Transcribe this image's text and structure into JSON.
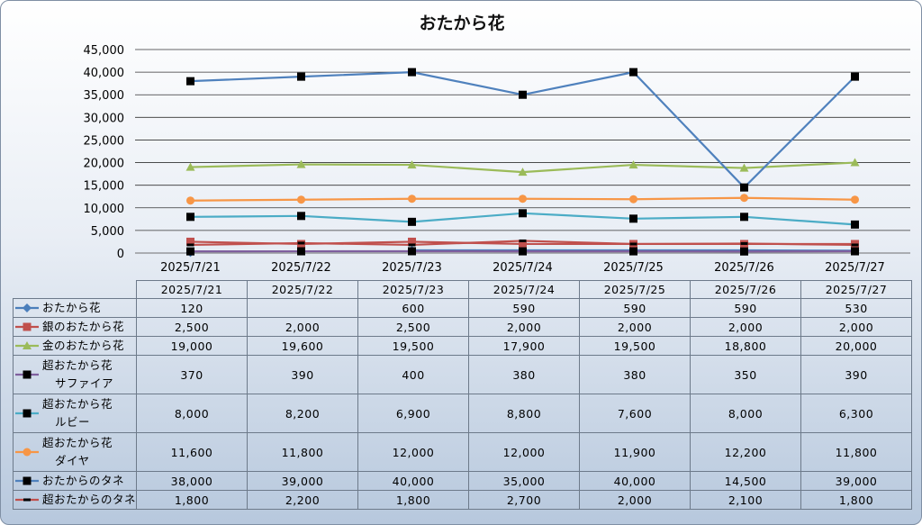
{
  "chart_data": {
    "type": "line",
    "title": "おたから花",
    "categories": [
      "2025/7/21",
      "2025/7/22",
      "2025/7/23",
      "2025/7/24",
      "2025/7/25",
      "2025/7/26",
      "2025/7/27"
    ],
    "ylim": [
      0,
      45000
    ],
    "yticks": [
      "0",
      "5,000",
      "10,000",
      "15,000",
      "20,000",
      "25,000",
      "30,000",
      "35,000",
      "40,000",
      "45,000"
    ],
    "ytick_values": [
      0,
      5000,
      10000,
      15000,
      20000,
      25000,
      30000,
      35000,
      40000,
      45000
    ],
    "grid": true,
    "legend": "data-table",
    "series": [
      {
        "name": "おたから花",
        "name_lines": [
          "おたから花"
        ],
        "color": "#4a7ebb",
        "marker": "diamond",
        "values": [
          120,
          null,
          600,
          590,
          590,
          590,
          530
        ],
        "labels": [
          "120",
          "",
          "600",
          "590",
          "590",
          "590",
          "530"
        ]
      },
      {
        "name": "銀のおたから花",
        "name_lines": [
          "銀のおたから花"
        ],
        "color": "#c0504d",
        "marker": "square",
        "values": [
          2500,
          2000,
          2500,
          2000,
          2000,
          2000,
          2000
        ],
        "labels": [
          "2,500",
          "2,000",
          "2,500",
          "2,000",
          "2,000",
          "2,000",
          "2,000"
        ]
      },
      {
        "name": "金のおたから花",
        "name_lines": [
          "金のおたから花"
        ],
        "color": "#9bbb59",
        "marker": "triangle",
        "values": [
          19000,
          19600,
          19500,
          17900,
          19500,
          18800,
          20000
        ],
        "labels": [
          "19,000",
          "19,600",
          "19,500",
          "17,900",
          "19,500",
          "18,800",
          "20,000"
        ]
      },
      {
        "name": "超おたから花 サファイア",
        "name_lines": [
          "超おたから花",
          "サファイア"
        ],
        "color": "#7f5f9e",
        "marker": "blacksquare",
        "values": [
          370,
          390,
          400,
          380,
          380,
          350,
          390
        ],
        "labels": [
          "370",
          "390",
          "400",
          "380",
          "380",
          "350",
          "390"
        ]
      },
      {
        "name": "超おたから花 ルビー",
        "name_lines": [
          "超おたから花",
          "ルビー"
        ],
        "color": "#4bacc6",
        "marker": "blacksquare",
        "values": [
          8000,
          8200,
          6900,
          8800,
          7600,
          8000,
          6300
        ],
        "labels": [
          "8,000",
          "8,200",
          "6,900",
          "8,800",
          "7,600",
          "8,000",
          "6,300"
        ]
      },
      {
        "name": "超おたから花 ダイヤ",
        "name_lines": [
          "超おたから花",
          "ダイヤ"
        ],
        "color": "#f79646",
        "marker": "circle",
        "values": [
          11600,
          11800,
          12000,
          12000,
          11900,
          12200,
          11800
        ],
        "labels": [
          "11,600",
          "11,800",
          "12,000",
          "12,000",
          "11,900",
          "12,200",
          "11,800"
        ]
      },
      {
        "name": "おたからのタネ",
        "name_lines": [
          "おたからのタネ"
        ],
        "color": "#4f81bd",
        "marker": "blacksquare",
        "values": [
          38000,
          39000,
          40000,
          35000,
          40000,
          14500,
          39000
        ],
        "labels": [
          "38,000",
          "39,000",
          "40,000",
          "35,000",
          "40,000",
          "14,500",
          "39,000"
        ]
      },
      {
        "name": "超おたからのタネ",
        "name_lines": [
          "超おたからのタネ"
        ],
        "color": "#c0504d",
        "marker": "dash",
        "values": [
          1800,
          2200,
          1800,
          2700,
          2000,
          2100,
          1800
        ],
        "labels": [
          "1,800",
          "2,200",
          "1,800",
          "2,700",
          "2,000",
          "2,100",
          "1,800"
        ]
      }
    ]
  }
}
